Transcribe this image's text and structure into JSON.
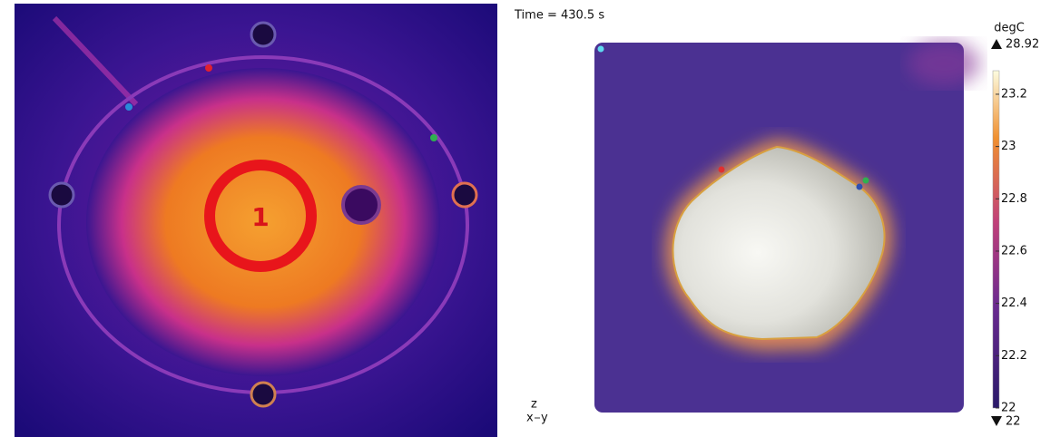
{
  "left_panel": {
    "marker_label": "1"
  },
  "right_panel": {
    "time_label": "Time = 430.5 s",
    "colorbar": {
      "unit": "degC",
      "max": 28.92,
      "min": 22,
      "lim": [
        22,
        23.29
      ],
      "ticks": [
        22,
        22.2,
        22.4,
        22.6,
        22.8,
        23,
        23.2
      ]
    },
    "axes": {
      "z": "z",
      "x": "x",
      "y": "y"
    }
  }
}
